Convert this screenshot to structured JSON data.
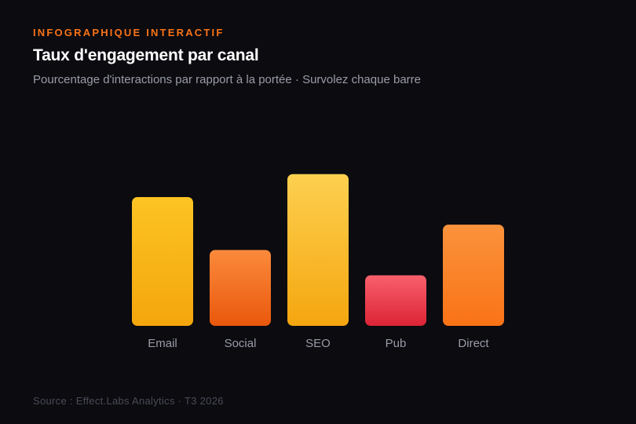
{
  "header": {
    "kicker": "INFOGRAPHIQUE INTERACTIF",
    "title": "Taux d'engagement par canal",
    "subtitle": "Pourcentage d'interactions par rapport à la portée · Survolez chaque barre"
  },
  "footer": {
    "source": "Source : Effect.Labs Analytics · T3 2026"
  },
  "chart_data": {
    "type": "bar",
    "categories": [
      "Email",
      "Social",
      "SEO",
      "Pub",
      "Direct"
    ],
    "values": [
      28,
      16.5,
      33,
      11,
      22
    ],
    "ylim": [
      0,
      35
    ],
    "grid": false,
    "legend": "none",
    "colors": [
      {
        "top": "#fcc423",
        "bottom": "#f4a60c"
      },
      {
        "top": "#fb8a3c",
        "bottom": "#ea580c"
      },
      {
        "top": "#fdd04f",
        "bottom": "#f5a60f"
      },
      {
        "top": "#f8606c",
        "bottom": "#dc2436"
      },
      {
        "top": "#fb923c",
        "bottom": "#f97316"
      }
    ]
  }
}
